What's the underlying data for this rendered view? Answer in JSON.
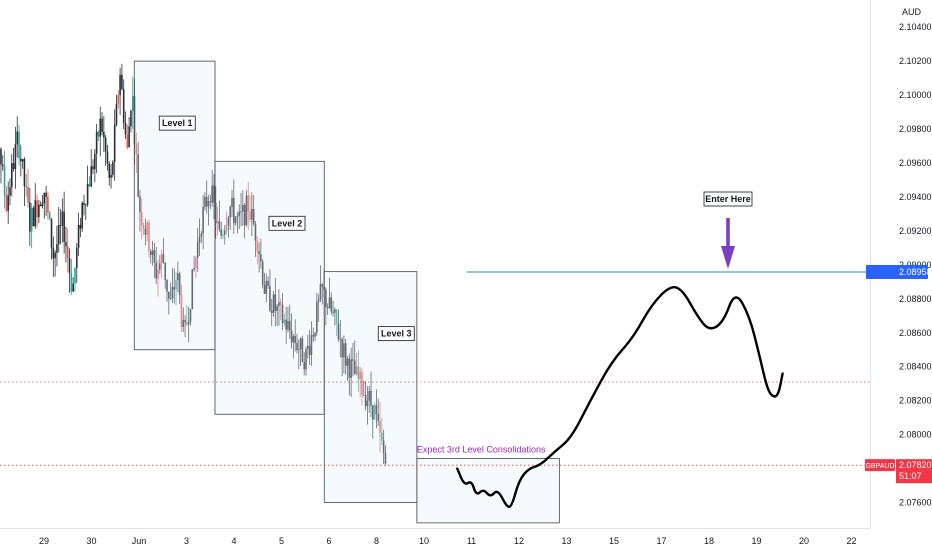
{
  "chart_data": {
    "type": "candlestick",
    "symbol": "GBPAUD",
    "currency": "AUD",
    "countdown": "51:07",
    "current_price": 2.0782,
    "current_price_label": "2.07820",
    "horizontal_line_price": 2.08958,
    "horizontal_line_label": "2.08958",
    "dotted_level": 2.0831,
    "y_axis": {
      "min": 2.0745,
      "max": 2.1056,
      "tick_values": [
        2.104,
        2.102,
        2.1,
        2.098,
        2.096,
        2.094,
        2.092,
        2.09,
        2.088,
        2.086,
        2.084,
        2.082,
        2.08,
        2.078,
        2.076
      ],
      "tick_labels": [
        "2.10400",
        "2.10200",
        "2.10000",
        "2.09800",
        "2.09600",
        "2.09400",
        "2.09200",
        "2.09000",
        "2.08800",
        "2.08600",
        "2.08400",
        "2.08200",
        "2.08000",
        "",
        "2.07600"
      ]
    },
    "x_axis": {
      "tick_labels": [
        "8",
        "29",
        "30",
        "Jun",
        "3",
        "4",
        "5",
        "6",
        "8",
        "10",
        "11",
        "12",
        "13",
        "15",
        "17",
        "18",
        "19",
        "20",
        "22"
      ],
      "tick_days": [
        -3.4,
        -2,
        -1,
        0,
        1,
        2,
        3,
        4,
        5,
        6,
        7,
        8,
        9,
        10,
        11,
        12,
        13,
        14,
        15
      ]
    },
    "candle_path": [
      [
        -3.4,
        2.0955
      ],
      [
        -3.0,
        2.0985
      ],
      [
        -2.8,
        2.0935
      ],
      [
        -2.55,
        2.0975
      ],
      [
        -2.3,
        2.0925
      ],
      [
        -2.0,
        2.0945
      ],
      [
        -1.8,
        2.0905
      ],
      [
        -1.6,
        2.0925
      ],
      [
        -1.4,
        2.0885
      ],
      [
        -1.2,
        2.0935
      ],
      [
        -1.0,
        2.0955
      ],
      [
        -0.8,
        2.0985
      ],
      [
        -0.6,
        2.0945
      ],
      [
        -0.4,
        2.1015
      ],
      [
        -0.25,
        2.0965
      ],
      [
        -0.15,
        2.1005
      ],
      [
        0.0,
        2.0935
      ],
      [
        0.2,
        2.0915
      ],
      [
        0.35,
        2.0895
      ],
      [
        0.5,
        2.0905
      ],
      [
        0.65,
        2.0875
      ],
      [
        0.8,
        2.0895
      ],
      [
        0.95,
        2.0855
      ],
      [
        1.1,
        2.0885
      ],
      [
        1.3,
        2.0925
      ],
      [
        1.5,
        2.0945
      ],
      [
        1.7,
        2.0915
      ],
      [
        1.9,
        2.0935
      ],
      [
        2.1,
        2.0925
      ],
      [
        2.3,
        2.0935
      ],
      [
        2.5,
        2.0915
      ],
      [
        2.65,
        2.0885
      ],
      [
        2.85,
        2.0875
      ],
      [
        3.1,
        2.0865
      ],
      [
        3.3,
        2.0855
      ],
      [
        3.5,
        2.0845
      ],
      [
        3.7,
        2.0865
      ],
      [
        3.85,
        2.0885
      ],
      [
        4.0,
        2.0875
      ],
      [
        4.15,
        2.0865
      ],
      [
        4.35,
        2.0845
      ],
      [
        4.55,
        2.0835
      ],
      [
        4.75,
        2.0825
      ],
      [
        4.95,
        2.0815
      ],
      [
        5.05,
        2.08
      ],
      [
        5.15,
        2.0788
      ],
      [
        5.2,
        2.0782
      ]
    ],
    "boxes": [
      {
        "label": "Level 1",
        "d0": -0.1,
        "d1": 1.6,
        "top": 2.102,
        "bottom": 2.085
      },
      {
        "label": "Level 2",
        "d0": 1.6,
        "d1": 3.9,
        "top": 2.0961,
        "bottom": 2.0812
      },
      {
        "label": "Level 3",
        "d0": 3.9,
        "d1": 5.85,
        "top": 2.0896,
        "bottom": 2.076
      },
      {
        "label": "",
        "d0": 5.85,
        "d1": 8.85,
        "top": 2.0786,
        "bottom": 2.0748
      }
    ],
    "forecast_path": [
      [
        6.7,
        2.078
      ],
      [
        6.85,
        2.077
      ],
      [
        7.0,
        2.0773
      ],
      [
        7.1,
        2.0764
      ],
      [
        7.25,
        2.0768
      ],
      [
        7.4,
        2.0763
      ],
      [
        7.55,
        2.0768
      ],
      [
        7.75,
        2.0757
      ],
      [
        7.85,
        2.0758
      ],
      [
        8.0,
        2.0773
      ],
      [
        8.2,
        2.078
      ],
      [
        8.45,
        2.0782
      ],
      [
        8.75,
        2.079
      ],
      [
        9.1,
        2.0798
      ],
      [
        9.5,
        2.082
      ],
      [
        9.95,
        2.0843
      ],
      [
        10.4,
        2.0857
      ],
      [
        10.8,
        2.0877
      ],
      [
        11.2,
        2.0888
      ],
      [
        11.45,
        2.0885
      ],
      [
        11.75,
        2.087
      ],
      [
        12.0,
        2.0861
      ],
      [
        12.3,
        2.0866
      ],
      [
        12.55,
        2.0885
      ],
      [
        12.85,
        2.087
      ],
      [
        13.05,
        2.0848
      ],
      [
        13.2,
        2.083
      ],
      [
        13.3,
        2.0823
      ],
      [
        13.45,
        2.0822
      ],
      [
        13.55,
        2.0836
      ]
    ],
    "annotations": {
      "consolidation_text": "Expect 3rd Level Consolidations",
      "enter_label": "Enter Here"
    },
    "colors": {
      "bull": "#26a69a",
      "bear": "#ef5350",
      "candle_dark": "#2a2e39",
      "line_blue": "#5b9bd5",
      "arrow_purple": "#7b3fc4",
      "annotation_purple": "#9c27b0",
      "price_red": "#f23645",
      "axis_blue": "#2962ff"
    }
  }
}
